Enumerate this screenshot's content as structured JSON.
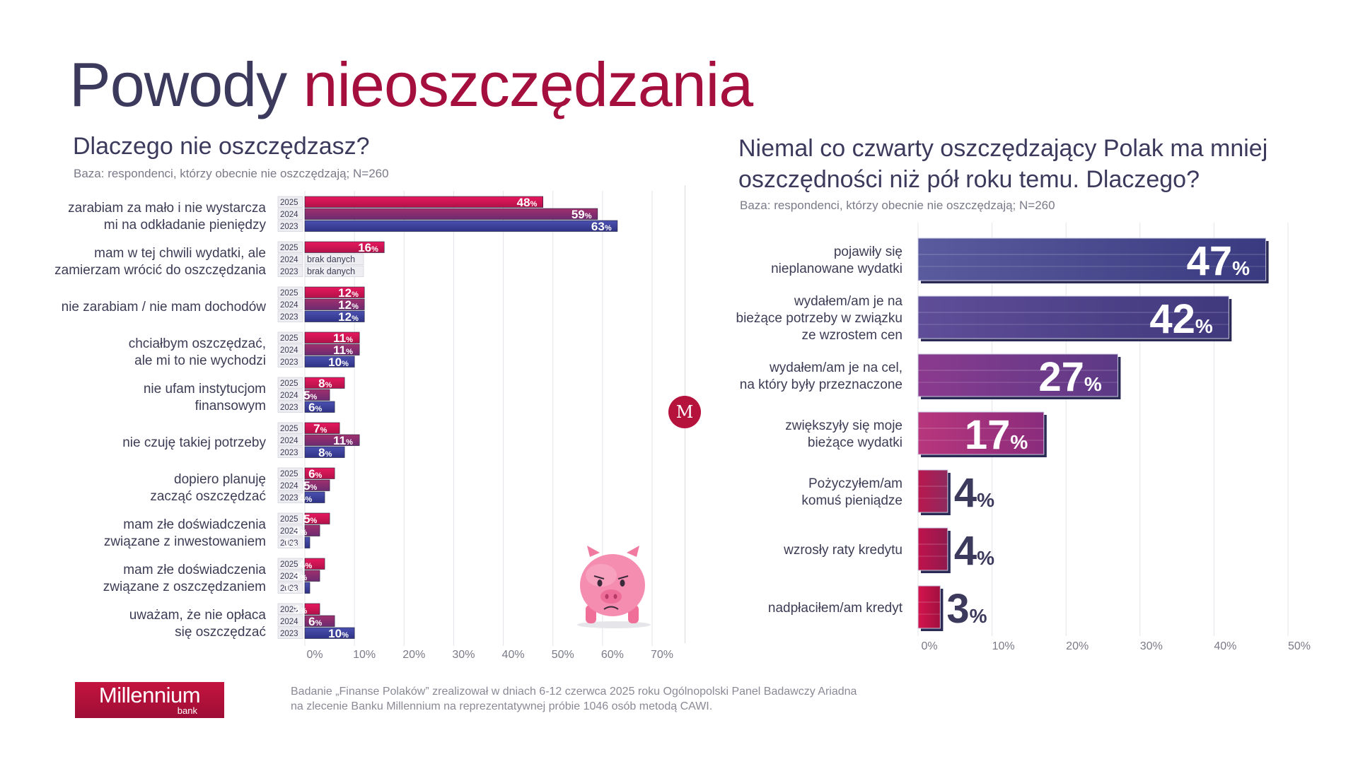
{
  "title": {
    "part1": "Powody",
    "part2": "nieoszczędzania"
  },
  "colors": {
    "title_dark": "#3b3a5c",
    "title_accent": "#a50f3d",
    "brand": "#b5123c",
    "y2025": "#e0115f",
    "y2024": "#8a2a70",
    "y2023": "#3d3f9a"
  },
  "left": {
    "question": "Dlaczego nie oszczędzasz?",
    "base": "Baza: respondenci, którzy obecnie nie oszczędzają; N=260"
  },
  "right": {
    "question_line1": "Niemal co czwarty oszczędzający Polak ma mniej",
    "question_line2": "oszczędności niż pół roku temu. Dlaczego?",
    "base": "Baza: respondenci, którzy obecnie nie oszczędzają; N=260"
  },
  "footnote": {
    "line1": "Badanie „Finanse Polaków” zrealizował w dniach 6-12 czerwca 2025 roku Ogólnopolski Panel Badawczy Ariadna",
    "line2": "na zlecenie Banku Millennium na reprezentatywnej próbie 1046 osób metodą CAWI."
  },
  "brand": {
    "name": "Millennium",
    "sub": "bank",
    "emblem": "M"
  },
  "icons": {
    "pig": "sad-piggy-bank-icon",
    "emblem": "millennium-emblem-icon"
  },
  "chart_data": [
    {
      "type": "bar",
      "orientation": "horizontal",
      "title": "Dlaczego nie oszczędzasz?",
      "years": [
        "2025",
        "2024",
        "2023"
      ],
      "missing_label": "brak danych",
      "xlim": [
        0,
        70
      ],
      "xticks": [
        "0%",
        "10%",
        "20%",
        "30%",
        "40%",
        "50%",
        "60%",
        "70%"
      ],
      "grid": true,
      "categories": [
        [
          "zarabiam za mało i nie wystarcza",
          "mi na odkładanie pieniędzy"
        ],
        [
          "mam w tej chwili wydatki, ale",
          "zamierzam wrócić do oszczędzania"
        ],
        [
          "nie zarabiam / nie mam dochodów"
        ],
        [
          "chciałbym oszczędzać,",
          "ale mi to nie wychodzi"
        ],
        [
          "nie ufam instytucjom",
          "finansowym"
        ],
        [
          "nie czuję takiej potrzeby"
        ],
        [
          "dopiero planuję",
          "zacząć oszczędzać"
        ],
        [
          "mam złe doświadczenia",
          "związane z inwestowaniem"
        ],
        [
          "mam złe doświadczenia",
          "związane z oszczędzaniem"
        ],
        [
          "uważam, że nie opłaca",
          "się oszczędzać"
        ]
      ],
      "series": [
        {
          "name": "2025",
          "values": [
            48,
            16,
            12,
            11,
            8,
            7,
            6,
            5,
            4,
            3
          ]
        },
        {
          "name": "2024",
          "values": [
            59,
            null,
            12,
            11,
            5,
            11,
            5,
            3,
            3,
            6
          ]
        },
        {
          "name": "2023",
          "values": [
            63,
            null,
            12,
            10,
            6,
            8,
            4,
            1,
            1,
            10
          ]
        }
      ]
    },
    {
      "type": "bar",
      "orientation": "horizontal",
      "title": "Niemal co czwarty oszczędzający Polak ma mniej oszczędności niż pół roku temu. Dlaczego?",
      "xlim": [
        0,
        50
      ],
      "xticks": [
        "0%",
        "10%",
        "20%",
        "30%",
        "40%",
        "50%"
      ],
      "grid": true,
      "categories": [
        [
          "pojawiły się",
          "nieplanowane wydatki"
        ],
        [
          "wydałem/am je na",
          "bieżące potrzeby w związku",
          "ze wzrostem cen"
        ],
        [
          "wydałem/am je na cel,",
          "na który były przeznaczone"
        ],
        [
          "zwiększyły się moje",
          "bieżące wydatki"
        ],
        [
          "Pożyczyłem/am",
          "komuś pieniądze"
        ],
        [
          "wzrosły raty kredytu"
        ],
        [
          "nadpłaciłem/am kredyt"
        ]
      ],
      "values": [
        47,
        42,
        27,
        17,
        4,
        4,
        3
      ],
      "value_suffix": "%"
    }
  ]
}
